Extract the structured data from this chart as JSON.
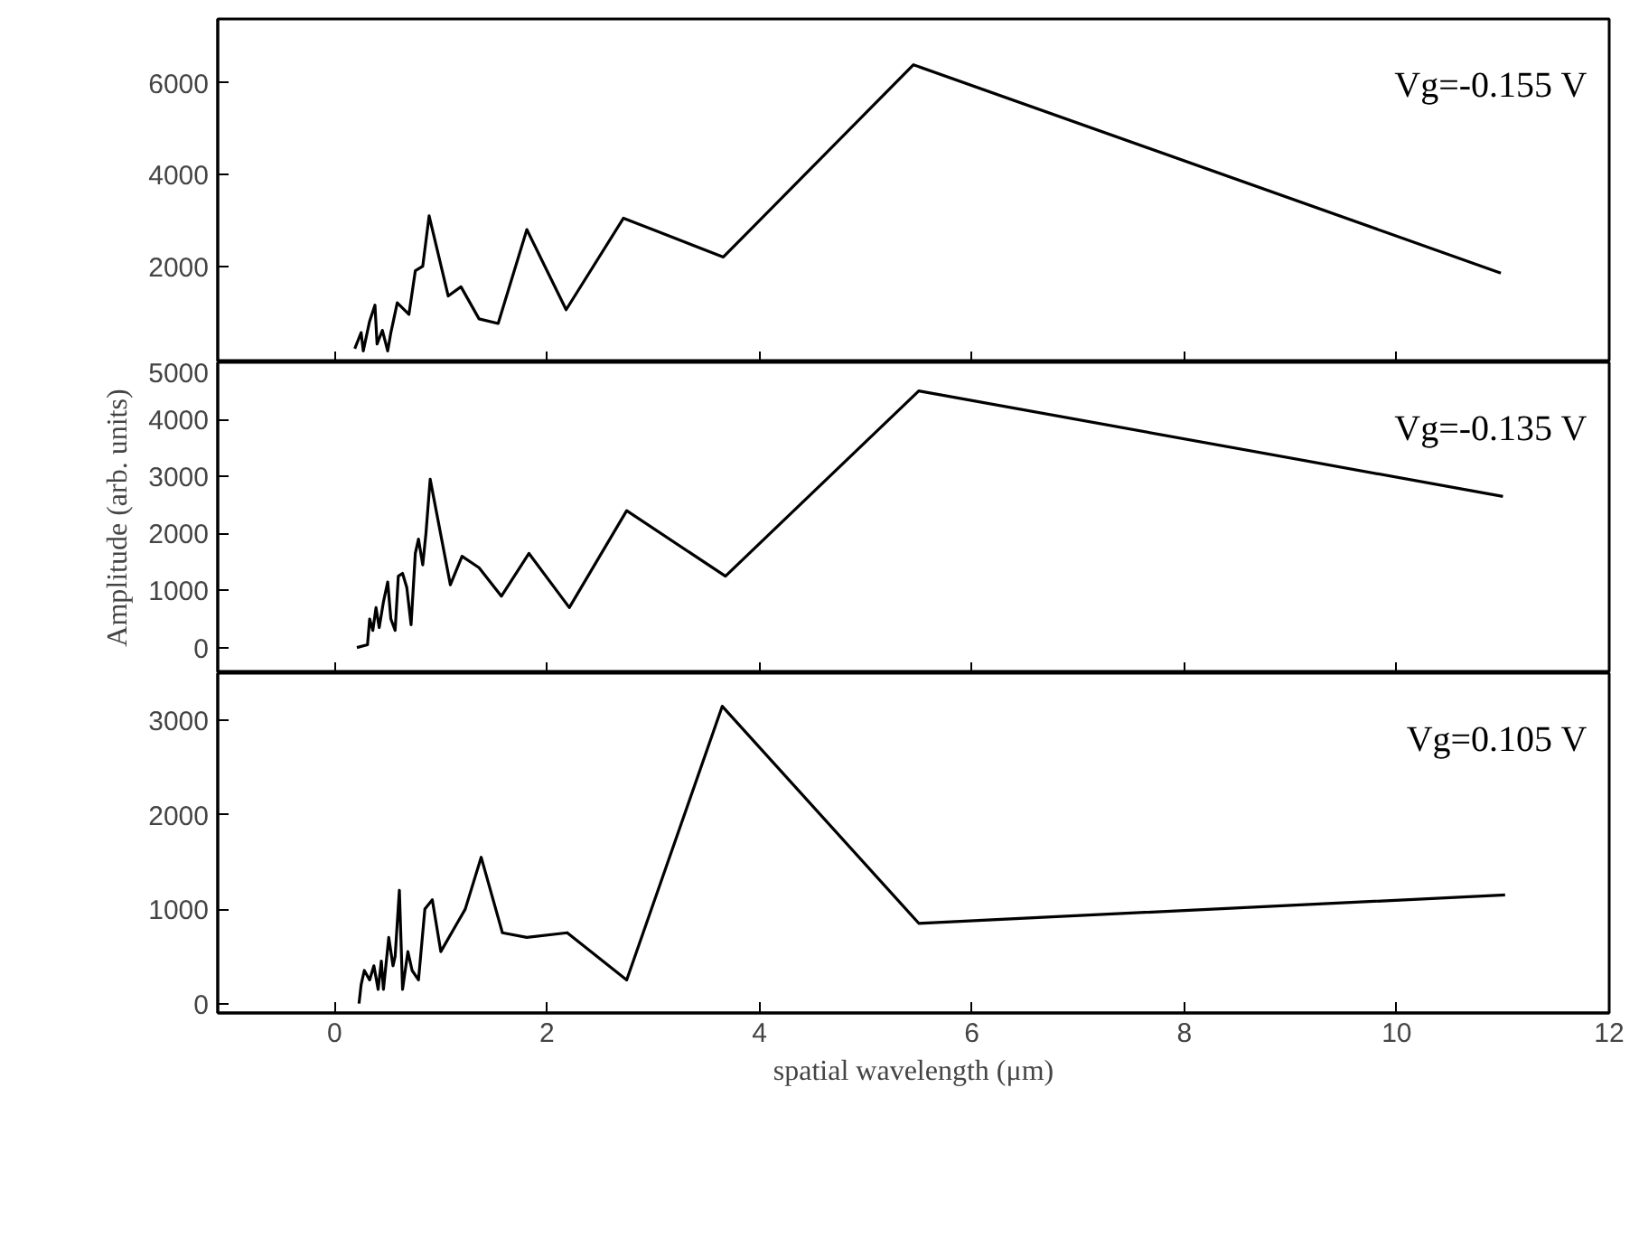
{
  "chart_data": [
    {
      "type": "line",
      "xlim": [
        -1.1,
        12
      ],
      "xticks": [
        0,
        2,
        4,
        6,
        8,
        10,
        12
      ],
      "ylim": [
        -100,
        7400
      ],
      "yticks": [
        2000,
        4000,
        6000
      ],
      "tick_labels": "y",
      "grid": false,
      "series": [
        {
          "name": "Vg=-0.155 V",
          "color": "#000000",
          "x": [
            0.19,
            0.25,
            0.27,
            0.33,
            0.38,
            0.4,
            0.45,
            0.5,
            0.53,
            0.59,
            0.7,
            0.76,
            0.83,
            0.89,
            1.07,
            1.19,
            1.36,
            1.54,
            1.81,
            2.18,
            2.72,
            3.66,
            5.45,
            10.98
          ],
          "values": [
            200,
            550,
            150,
            800,
            1150,
            300,
            600,
            150,
            550,
            1200,
            950,
            1900,
            2000,
            3100,
            1350,
            1550,
            850,
            750,
            2800,
            1050,
            3050,
            2200,
            6400,
            1850
          ]
        }
      ]
    },
    {
      "type": "line",
      "xlim": [
        -1.1,
        12
      ],
      "xticks": [
        0,
        2,
        4,
        6,
        8,
        10,
        12
      ],
      "ylim": [
        -450,
        5000
      ],
      "yticks": [
        0,
        1000,
        2000,
        3000,
        4000,
        5000
      ],
      "tick_labels": "y",
      "grid": false,
      "ylabel": "Amplitude (arb. units)",
      "series": [
        {
          "name": "Vg=-0.135 V",
          "color": "#000000",
          "x": [
            0.21,
            0.31,
            0.33,
            0.36,
            0.39,
            0.42,
            0.46,
            0.5,
            0.53,
            0.57,
            0.6,
            0.64,
            0.68,
            0.72,
            0.76,
            0.79,
            0.83,
            0.86,
            0.9,
            1.09,
            1.2,
            1.36,
            1.57,
            1.83,
            2.21,
            2.75,
            3.68,
            5.5,
            11.0
          ],
          "values": [
            0,
            50,
            500,
            300,
            700,
            350,
            800,
            1150,
            500,
            300,
            1250,
            1300,
            1050,
            400,
            1650,
            1900,
            1450,
            2000,
            2950,
            1100,
            1600,
            1400,
            900,
            1650,
            700,
            2400,
            1250,
            4500,
            2650
          ]
        }
      ]
    },
    {
      "type": "line",
      "xlim": [
        -1.1,
        12
      ],
      "xticks": [
        0,
        2,
        4,
        6,
        8,
        10,
        12
      ],
      "ylim": [
        -100,
        3500
      ],
      "yticks": [
        0,
        1000,
        2000,
        3000
      ],
      "grid": false,
      "xlabel": "spatial wavelength (μm)",
      "series": [
        {
          "name": "Vg=0.105 V",
          "color": "#000000",
          "x": [
            0.23,
            0.25,
            0.28,
            0.33,
            0.37,
            0.41,
            0.44,
            0.46,
            0.51,
            0.55,
            0.57,
            0.61,
            0.64,
            0.69,
            0.73,
            0.79,
            0.85,
            0.92,
            1.0,
            1.23,
            1.38,
            1.58,
            1.81,
            2.19,
            2.75,
            3.65,
            5.5,
            11.02
          ],
          "values": [
            0,
            200,
            350,
            250,
            400,
            150,
            450,
            150,
            700,
            400,
            500,
            1200,
            150,
            550,
            350,
            250,
            1000,
            1100,
            550,
            1000,
            1550,
            750,
            700,
            750,
            250,
            3150,
            850,
            1150
          ]
        }
      ]
    }
  ]
}
